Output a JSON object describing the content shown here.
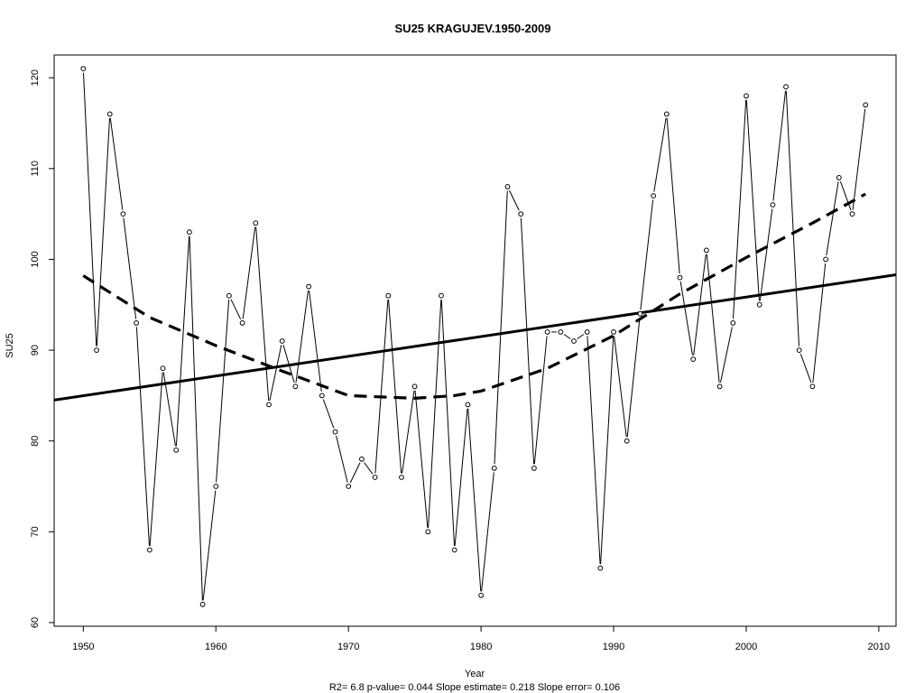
{
  "chart_data": {
    "type": "line",
    "title": "SU25    KRAGUJEV.1950-2009",
    "xlabel": "Year",
    "ylabel": "SU25",
    "footnote": "R2= 6.8  p-value= 0.044  Slope estimate= 0.218  Slope error= 0.106",
    "xlim": [
      1947.8,
      2011.3
    ],
    "ylim": [
      59.6,
      122.5
    ],
    "x_ticks": [
      1950,
      1960,
      1970,
      1980,
      1990,
      2000,
      2010
    ],
    "y_ticks": [
      60,
      70,
      80,
      90,
      100,
      110,
      120
    ],
    "grid": false,
    "series": [
      {
        "style": "line-with-open-points",
        "x": [
          1950,
          1951,
          1952,
          1953,
          1954,
          1955,
          1956,
          1957,
          1958,
          1959,
          1960,
          1961,
          1962,
          1963,
          1964,
          1965,
          1966,
          1967,
          1968,
          1969,
          1970,
          1971,
          1972,
          1973,
          1974,
          1975,
          1976,
          1977,
          1978,
          1979,
          1980,
          1981,
          1982,
          1983,
          1984,
          1985,
          1986,
          1987,
          1988,
          1989,
          1990,
          1991,
          1992,
          1993,
          1994,
          1995,
          1996,
          1997,
          1998,
          1999,
          2000,
          2001,
          2002,
          2003,
          2004,
          2005,
          2006,
          2007,
          2008,
          2009
        ],
        "y": [
          121,
          90,
          116,
          105,
          93,
          68,
          88,
          79,
          103,
          62,
          75,
          96,
          93,
          104,
          84,
          91,
          86,
          97,
          85,
          81,
          75,
          78,
          76,
          96,
          76,
          86,
          70,
          96,
          68,
          84,
          63,
          77,
          108,
          105,
          77,
          92,
          92,
          91,
          92,
          66,
          92,
          80,
          94,
          107,
          116,
          98,
          89,
          101,
          86,
          93,
          118,
          95,
          106,
          119,
          90,
          86,
          100,
          109,
          105,
          117
        ]
      },
      {
        "style": "solid-thick-trend",
        "x": [
          1947.8,
          2011.3
        ],
        "y": [
          84.5,
          98.3
        ]
      },
      {
        "style": "dashed-thick-smooth",
        "x": [
          1950,
          1955,
          1960,
          1965,
          1970,
          1975,
          1978,
          1980,
          1985,
          1990,
          1995,
          2000,
          2005,
          2009
        ],
        "y": [
          98.2,
          93.6,
          90.5,
          87.7,
          85.0,
          84.7,
          85.0,
          85.5,
          88.0,
          91.6,
          96.2,
          100.2,
          104.0,
          107.2
        ]
      }
    ]
  }
}
